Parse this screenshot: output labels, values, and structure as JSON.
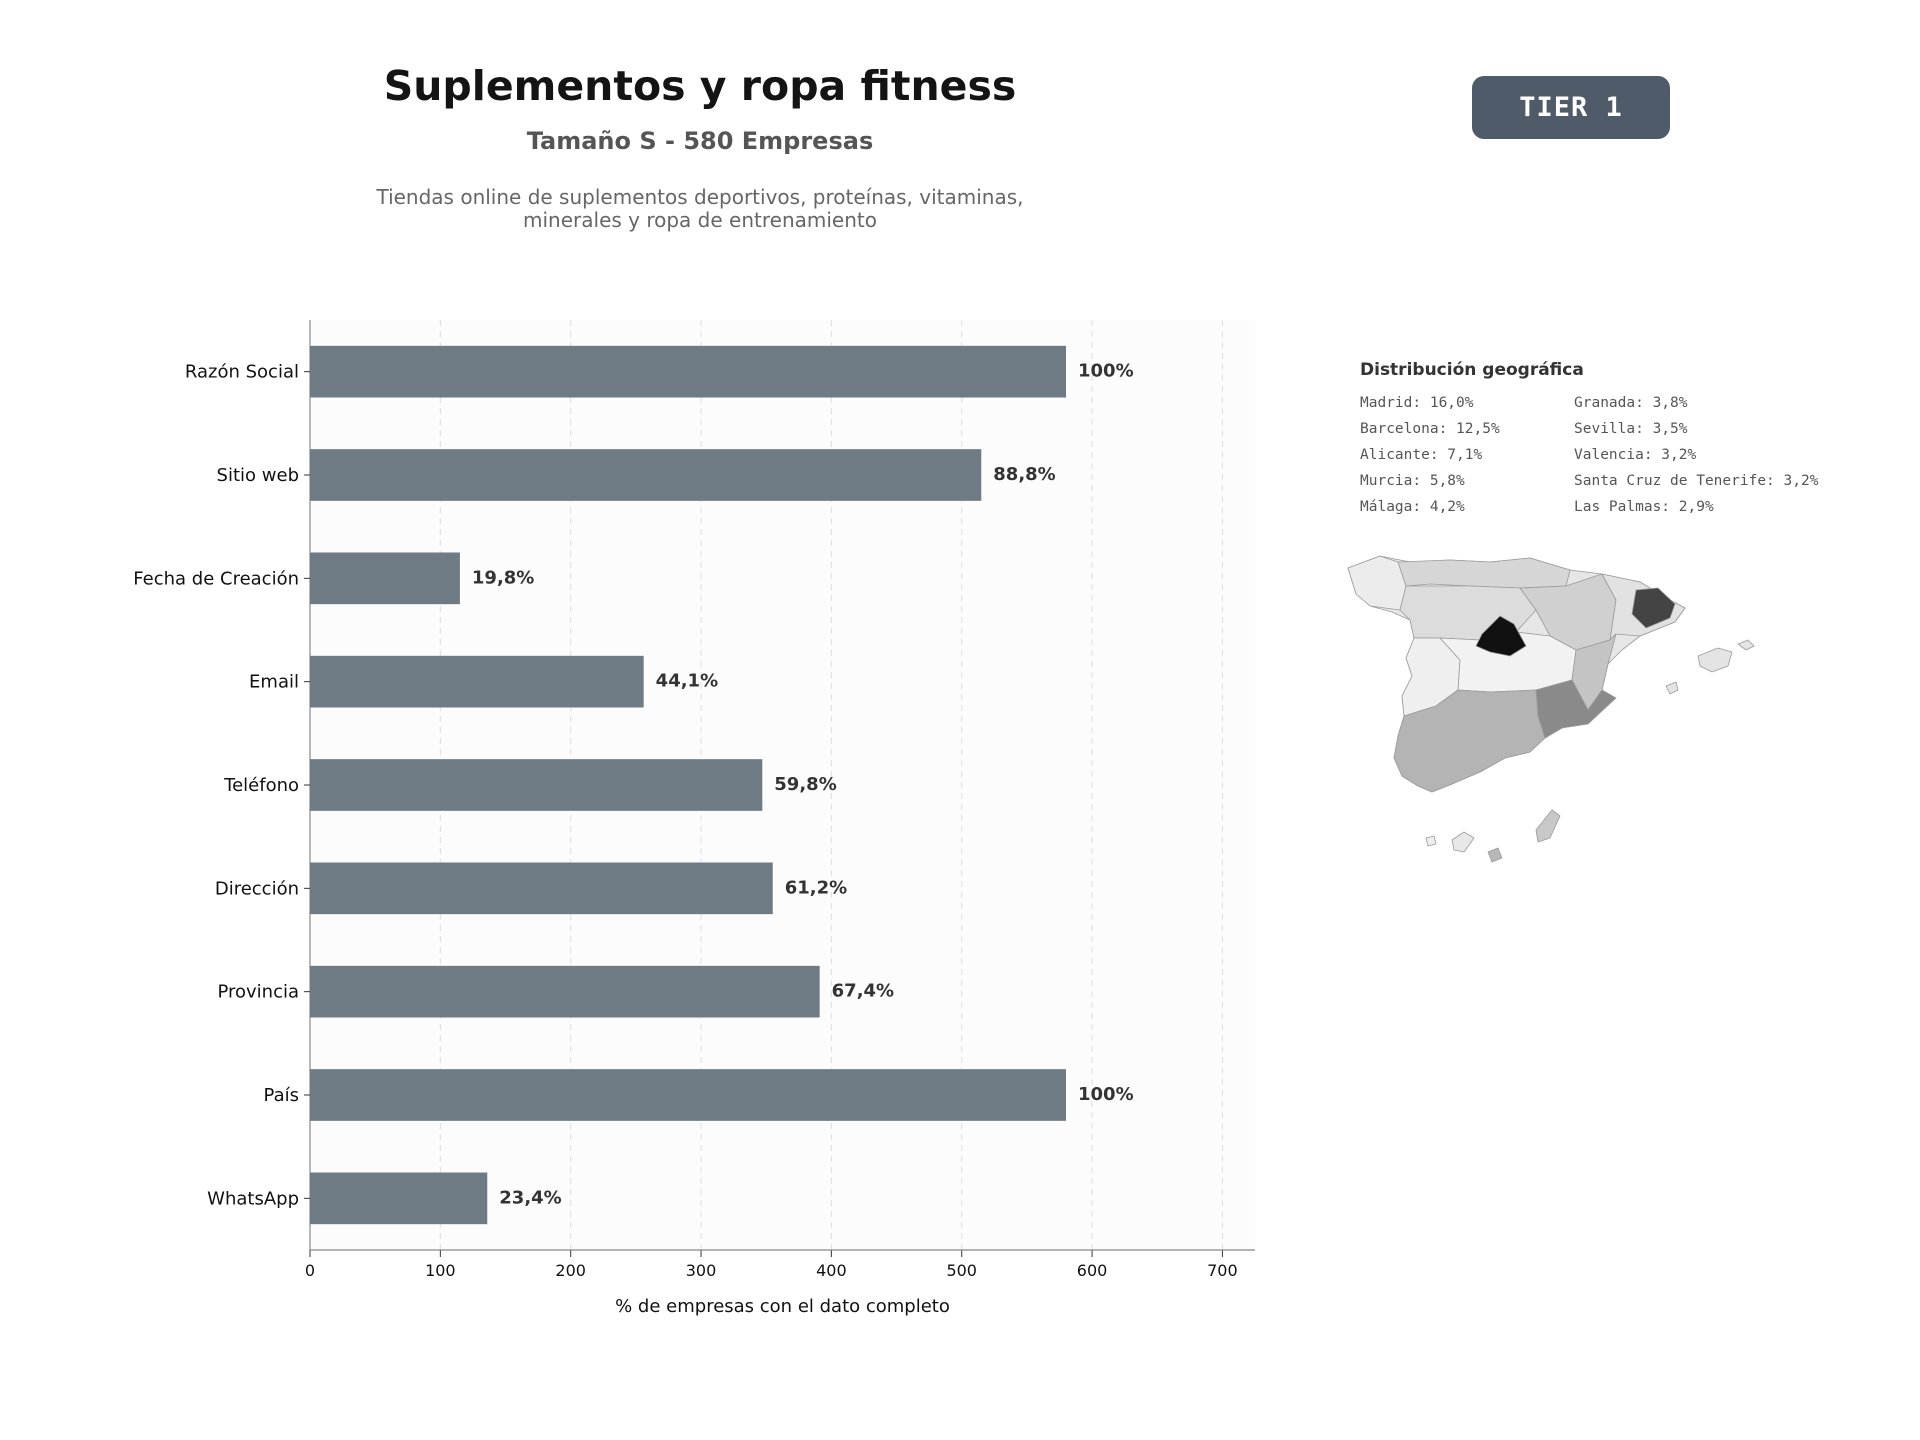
{
  "header": {
    "title": "Suplementos y ropa fitness",
    "subtitle": "Tamaño S - 580 Empresas",
    "description_line1": "Tiendas online de suplementos deportivos, proteínas, vitaminas,",
    "description_line2": "minerales y ropa de entrenamiento",
    "tier": "TIER 1"
  },
  "colors": {
    "bar": "#6e7a84",
    "badge": "#4f5b69",
    "plot_bg": "#fcfcfc",
    "grid": "#dddddd",
    "map_dark": "#111111",
    "map_mid": "#8a8a8a"
  },
  "chart_data": {
    "type": "bar",
    "orientation": "horizontal",
    "categories": [
      "Razón Social",
      "Sitio web",
      "Fecha de Creación",
      "Email",
      "Teléfono",
      "Dirección",
      "Provincia",
      "País",
      "WhatsApp"
    ],
    "values": [
      580,
      515,
      115,
      256,
      347,
      355,
      391,
      580,
      136
    ],
    "value_labels": [
      "100%",
      "88,8%",
      "19,8%",
      "44,1%",
      "59,8%",
      "61,2%",
      "67,4%",
      "100%",
      "23,4%"
    ],
    "xlabel": "% de empresas con el dato completo",
    "xlim": [
      0,
      725
    ],
    "xticks": [
      0,
      100,
      200,
      300,
      400,
      500,
      600,
      700
    ],
    "grid": "vertical dashed"
  },
  "geo": {
    "title": "Distribución geográfica",
    "left_column": [
      "Madrid: 16,0%",
      "Barcelona: 12,5%",
      "Alicante: 7,1%",
      "Murcia: 5,8%",
      "Málaga: 4,2%"
    ],
    "right_column": [
      "Granada: 3,8%",
      "Sevilla: 3,5%",
      "Valencia: 3,2%",
      "Santa Cruz de Tenerife: 3,2%",
      "Las Palmas: 2,9%"
    ]
  }
}
